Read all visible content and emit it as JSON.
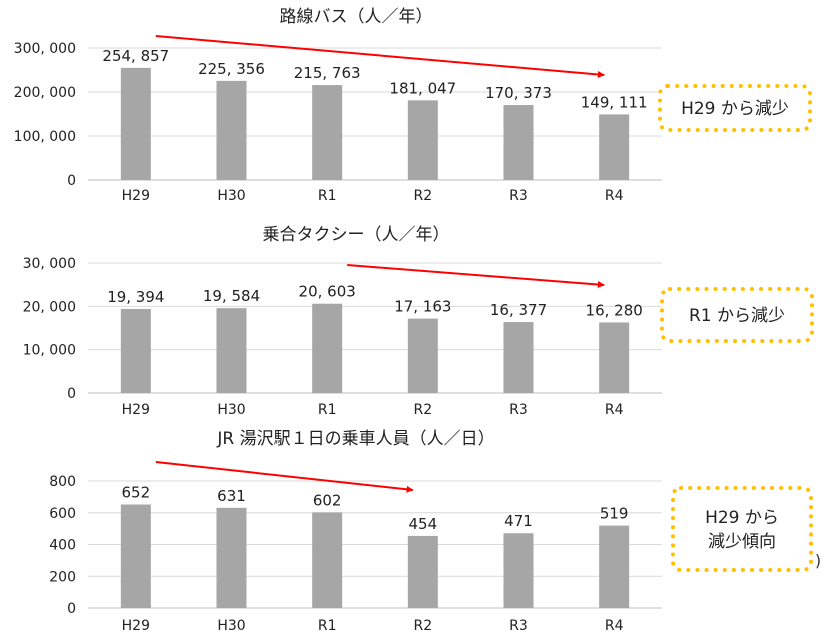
{
  "chart_data": [
    {
      "type": "bar",
      "title": "路線バス（人／年）",
      "categories": [
        "H29",
        "H30",
        "R1",
        "R2",
        "R3",
        "R4"
      ],
      "values": [
        254857,
        225356,
        215763,
        181047,
        170373,
        149111
      ],
      "value_labels": [
        "254, 857",
        "225, 356",
        "215, 763",
        "181, 047",
        "170, 373",
        "149, 111"
      ],
      "yticks": [
        0,
        100000,
        200000,
        300000
      ],
      "ytick_labels": [
        "0",
        "100, 000",
        "200, 000",
        "300, 000"
      ],
      "ylim": [
        0,
        300000
      ],
      "grid": true,
      "bar_color": "#a6a6a6",
      "trend_arrow": {
        "from_category": "H29",
        "to_category": "R4",
        "color": "#ff0000"
      },
      "callout": {
        "lines": [
          "H29 から減少"
        ],
        "border_color": "#ffc000"
      }
    },
    {
      "type": "bar",
      "title": "乗合タクシー（人／年）",
      "categories": [
        "H29",
        "H30",
        "R1",
        "R2",
        "R3",
        "R4"
      ],
      "values": [
        19394,
        19584,
        20603,
        17163,
        16377,
        16280
      ],
      "value_labels": [
        "19, 394",
        "19, 584",
        "20, 603",
        "17, 163",
        "16, 377",
        "16, 280"
      ],
      "yticks": [
        0,
        10000,
        20000,
        30000
      ],
      "ytick_labels": [
        "0",
        "10, 000",
        "20, 000",
        "30, 000"
      ],
      "ylim": [
        0,
        30000
      ],
      "grid": true,
      "bar_color": "#a6a6a6",
      "trend_arrow": {
        "from_category": "R1",
        "to_category": "R4",
        "color": "#ff0000"
      },
      "callout": {
        "lines": [
          "R1 から減少"
        ],
        "border_color": "#ffc000"
      }
    },
    {
      "type": "bar",
      "title": "JR 湯沢駅１日の乗車人員（人／日）",
      "categories": [
        "H29",
        "H30",
        "R1",
        "R2",
        "R3",
        "R4"
      ],
      "values": [
        652,
        631,
        602,
        454,
        471,
        519
      ],
      "value_labels": [
        "652",
        "631",
        "602",
        "454",
        "471",
        "519"
      ],
      "yticks": [
        0,
        200,
        400,
        600,
        800
      ],
      "ytick_labels": [
        "0",
        "200",
        "400",
        "600",
        "800"
      ],
      "ylim": [
        0,
        800
      ],
      "grid": true,
      "bar_color": "#a6a6a6",
      "trend_arrow": {
        "from_category": "H29",
        "to_category": "R2",
        "color": "#ff0000"
      },
      "callout": {
        "lines": [
          "H29 から",
          "減少傾向"
        ],
        "border_color": "#ffc000"
      }
    }
  ],
  "margin_text": ")"
}
